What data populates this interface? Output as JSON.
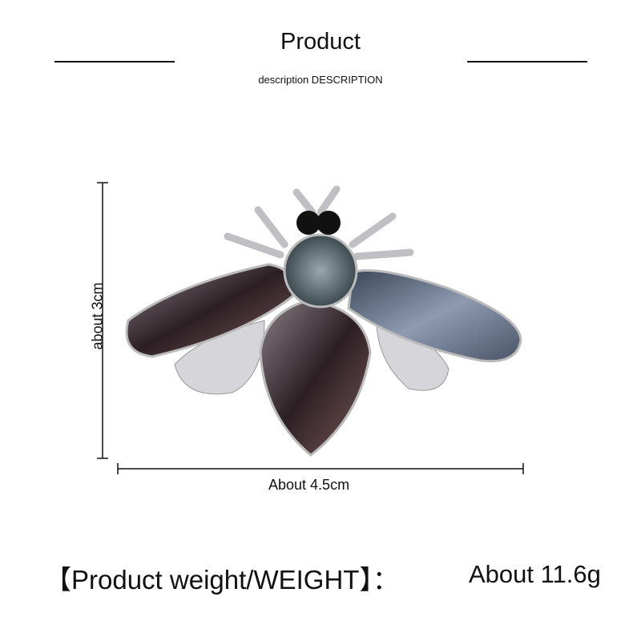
{
  "header": {
    "title": "Product",
    "subtitle": "description DESCRIPTION"
  },
  "dimensions": {
    "height_label": "about 3cm",
    "width_label": "About 4.5cm"
  },
  "weight": {
    "label": "【Product weight/WEIGHT】：",
    "value": "About 11.6g"
  },
  "colors": {
    "text": "#111111",
    "crystal_dark": "#3a2a2e",
    "crystal_blue": "#6b7a92",
    "metal": "#c8c8cc"
  }
}
